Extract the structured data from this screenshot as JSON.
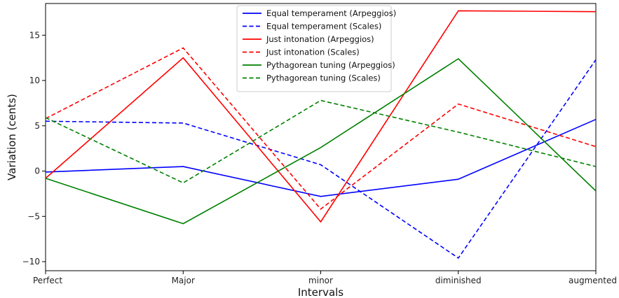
{
  "chart_data": {
    "type": "line",
    "title": "",
    "xlabel": "Intervals",
    "ylabel": "Variation (cents)",
    "categories": [
      "Perfect",
      "Major",
      "minor",
      "diminished",
      "augmented"
    ],
    "ylim": [
      -11,
      18.5
    ],
    "yticks": [
      -10,
      -5,
      0,
      5,
      10,
      15
    ],
    "grid": false,
    "legend_position": "top-center",
    "series": [
      {
        "name": "Equal temperament (Arpeggios)",
        "color": "#0000ff",
        "style": "solid",
        "values": [
          -0.1,
          0.5,
          -2.8,
          -0.9,
          5.7
        ]
      },
      {
        "name": "Equal temperament (Scales)",
        "color": "#0000ff",
        "style": "dashed",
        "values": [
          5.5,
          5.3,
          0.7,
          -9.6,
          12.3
        ]
      },
      {
        "name": "Just intonation (Arpeggios)",
        "color": "#ff0000",
        "style": "solid",
        "values": [
          -0.8,
          12.5,
          -5.6,
          17.7,
          17.6
        ]
      },
      {
        "name": "Just intonation (Scales)",
        "color": "#ff0000",
        "style": "dashed",
        "values": [
          5.8,
          13.6,
          -4.2,
          7.4,
          2.7
        ]
      },
      {
        "name": "Pythagorean tuning (Arpeggios)",
        "color": "#008000",
        "style": "solid",
        "values": [
          -0.8,
          -5.8,
          2.6,
          12.4,
          -2.2
        ]
      },
      {
        "name": "Pythagorean tuning (Scales)",
        "color": "#008000",
        "style": "dashed",
        "values": [
          5.9,
          -1.3,
          7.8,
          4.3,
          0.5
        ]
      }
    ]
  }
}
